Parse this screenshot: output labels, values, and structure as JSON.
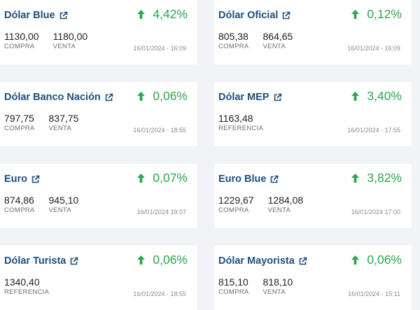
{
  "cards": [
    {
      "title": "Dólar Blue",
      "change": "4,42%",
      "values": [
        {
          "v": "1130,00",
          "l": "COMPRA"
        },
        {
          "v": "1180,00",
          "l": "VENTA"
        }
      ],
      "date": "16/01/2024 - 16:09"
    },
    {
      "title": "Dólar Oficial",
      "change": "0,12%",
      "values": [
        {
          "v": "805,38",
          "l": "COMPRA"
        },
        {
          "v": "864,65",
          "l": "VENTA"
        }
      ],
      "date": "16/01/2024 - 16:09"
    },
    {
      "title": "Dólar Banco Nación",
      "change": "0,06%",
      "values": [
        {
          "v": "797,75",
          "l": "COMPRA"
        },
        {
          "v": "837,75",
          "l": "VENTA"
        }
      ],
      "date": "16/01/2024 - 18:55"
    },
    {
      "title": "Dólar MEP",
      "change": "3,40%",
      "values": [
        {
          "v": "1163,48",
          "l": "REFERENCIA"
        }
      ],
      "date": "16/01/2024 - 17:55"
    },
    {
      "title": "Euro",
      "change": "0,07%",
      "values": [
        {
          "v": "874,86",
          "l": "COMPRA"
        },
        {
          "v": "945,10",
          "l": "VENTA"
        }
      ],
      "date": "16/01/2024 19:07"
    },
    {
      "title": "Euro Blue",
      "change": "3,82%",
      "values": [
        {
          "v": "1229,67",
          "l": "COMPRA"
        },
        {
          "v": "1284,08",
          "l": "VENTA"
        }
      ],
      "date": "16/01/2024 17:00"
    },
    {
      "title": "Dólar Turista",
      "change": "0,06%",
      "values": [
        {
          "v": "1340,40",
          "l": "REFERENCIA"
        }
      ],
      "date": "16/01/2024 - 18:55"
    },
    {
      "title": "Dólar Mayorista",
      "change": "0,06%",
      "values": [
        {
          "v": "815,10",
          "l": "COMPRA"
        },
        {
          "v": "818,10",
          "l": "VENTA"
        }
      ],
      "date": "16/01/2024 - 15:11"
    }
  ],
  "colors": {
    "title": "#1e4f7f",
    "up": "#2aa84a",
    "muted": "#8a8a8a"
  },
  "icons": {
    "link": "external-link-icon",
    "trend": "arrow-up-icon"
  }
}
